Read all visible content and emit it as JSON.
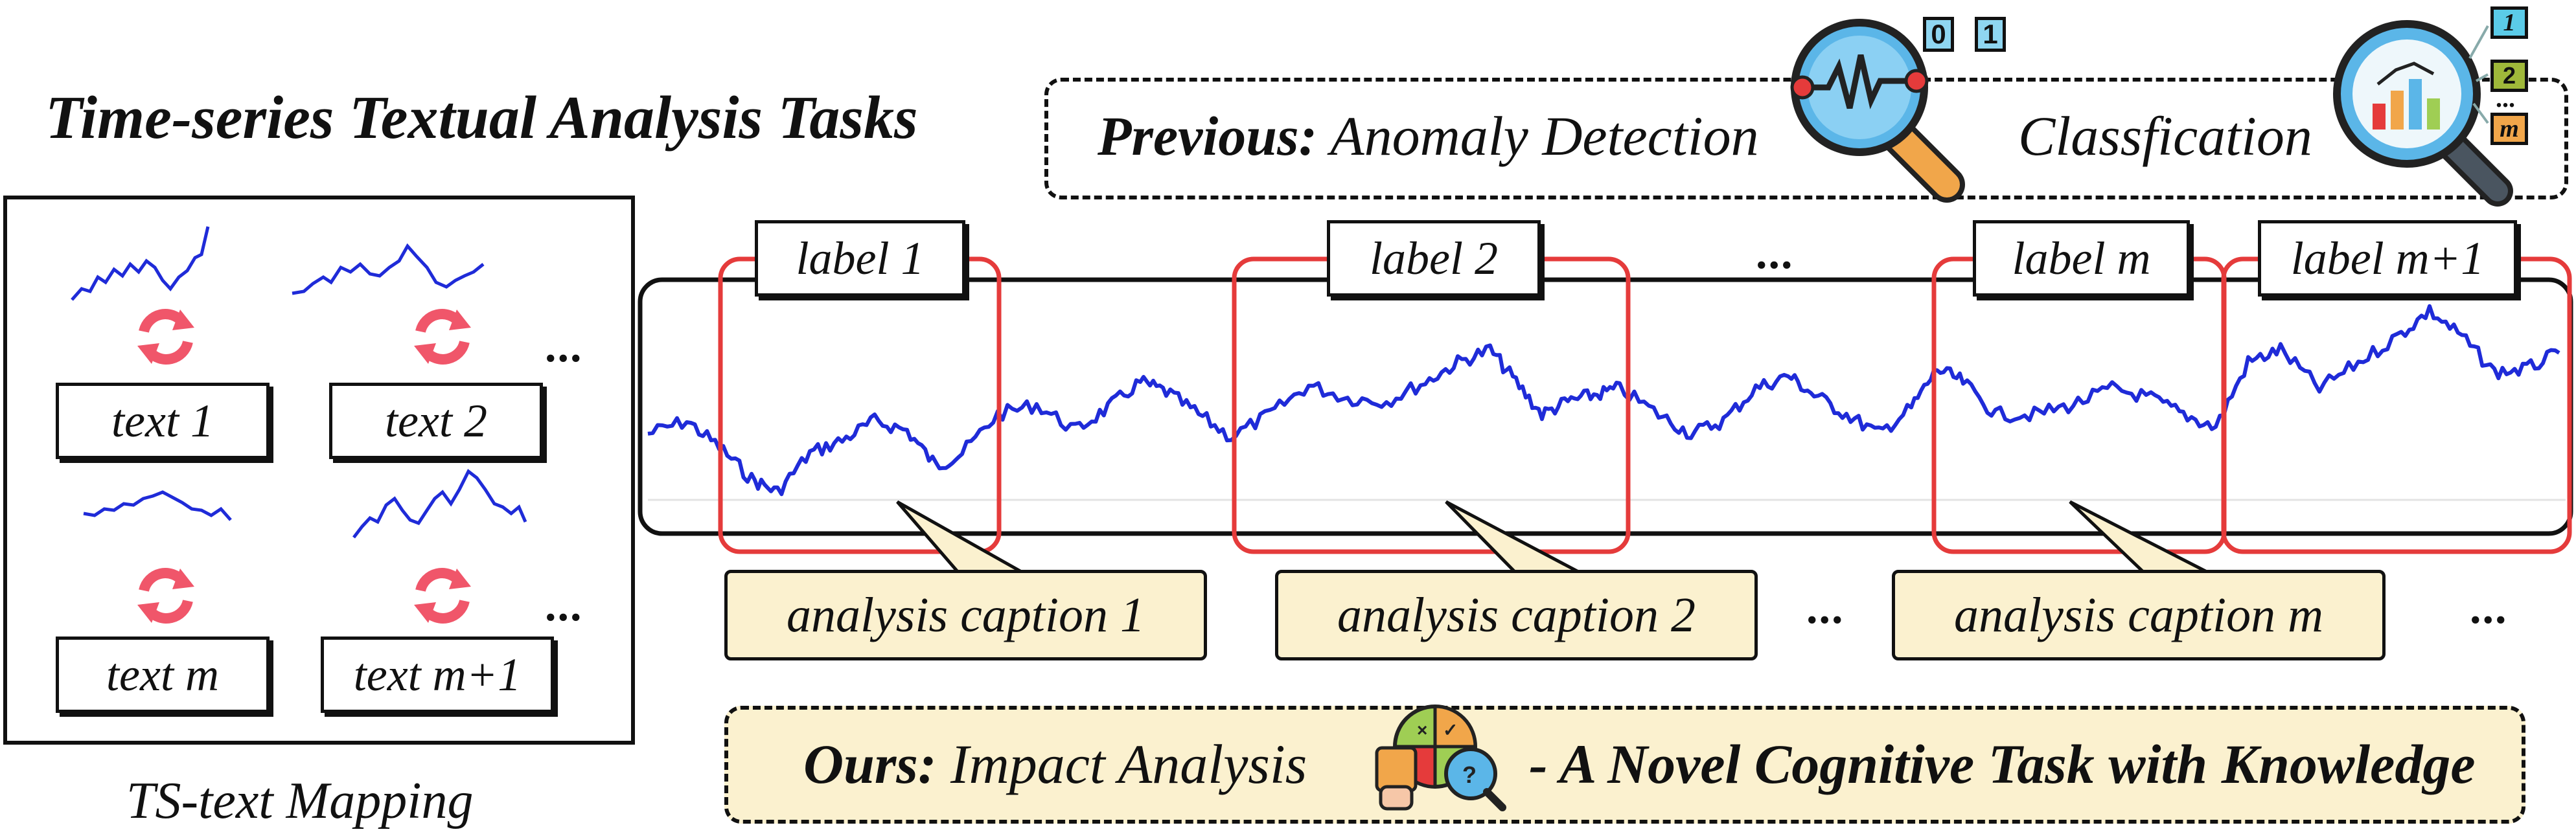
{
  "title": "Time-series Textual Analysis Tasks",
  "mapping": {
    "caption": "TS-text Mapping",
    "texts": [
      "text 1",
      "text 2",
      "text m",
      "text m+1"
    ],
    "ellipsis": "..."
  },
  "previous": {
    "prefix": "Previous:",
    "task1": "Anomaly Detection",
    "task2": "Classfication",
    "binary_labels": [
      "0",
      "1"
    ],
    "class_labels": [
      "1",
      "2",
      "...",
      "m"
    ]
  },
  "segments": {
    "labels": [
      "label 1",
      "label 2",
      "label m",
      "label m+1"
    ],
    "captions": [
      "analysis caption 1",
      "analysis caption 2",
      "analysis caption m"
    ],
    "ellipsis": "..."
  },
  "ours": {
    "prefix": "Ours:",
    "task": "Impact Analysis",
    "suffix": "- A Novel Cognitive Task with Knowledge"
  },
  "colors": {
    "series": "#1f2bd8",
    "highlight": "#e53b3b",
    "caption_fill": "#fbf1cf",
    "refresh_icon": "#f0566a",
    "lens": "#5bb6e8",
    "handle": "#f1a64a"
  }
}
